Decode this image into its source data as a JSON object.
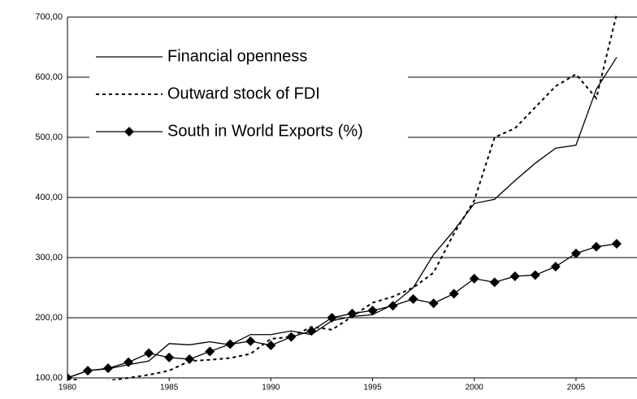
{
  "chart_data": {
    "type": "line",
    "x": [
      1980,
      1981,
      1982,
      1983,
      1984,
      1985,
      1986,
      1987,
      1988,
      1989,
      1990,
      1991,
      1992,
      1993,
      1994,
      1995,
      1996,
      1997,
      1998,
      1999,
      2000,
      2001,
      2002,
      2003,
      2004,
      2005,
      2006,
      2007
    ],
    "series": [
      {
        "name": "Financial openness",
        "color": "#000000",
        "linestyle": "solid",
        "marker": "none",
        "values": [
          100,
          112,
          115,
          122,
          128,
          157,
          155,
          160,
          155,
          172,
          172,
          178,
          172,
          195,
          202,
          205,
          222,
          250,
          305,
          345,
          390,
          397,
          428,
          457,
          482,
          487,
          580,
          633
        ]
      },
      {
        "name": "Outward stock of FDI",
        "color": "#000000",
        "linestyle": "dashed",
        "marker": "none",
        "values": [
          100,
          92,
          95,
          100,
          105,
          112,
          128,
          130,
          133,
          140,
          165,
          168,
          185,
          180,
          202,
          225,
          235,
          250,
          275,
          340,
          395,
          500,
          515,
          550,
          585,
          605,
          565,
          705
        ]
      },
      {
        "name": "South in World Exports (%)",
        "color": "#000000",
        "linestyle": "solid",
        "marker": "diamond",
        "values": [
          100,
          112,
          116,
          126,
          141,
          134,
          131,
          144,
          156,
          161,
          154,
          168,
          178,
          200,
          207,
          212,
          220,
          231,
          224,
          240,
          265,
          259,
          269,
          271,
          285,
          307,
          318,
          323
        ]
      }
    ],
    "xlim": [
      1980,
      2008
    ],
    "xticks": [
      1980,
      1985,
      1990,
      1995,
      2000,
      2005
    ],
    "ylim": [
      100,
      700
    ],
    "yticks": [
      {
        "value": 100,
        "label": "100,00"
      },
      {
        "value": 200,
        "label": "200,00"
      },
      {
        "value": 300,
        "label": "300,00"
      },
      {
        "value": 400,
        "label": "400,00"
      },
      {
        "value": 500,
        "label": "500,00"
      },
      {
        "value": 600,
        "label": "600,00"
      },
      {
        "value": 700,
        "label": "700,00"
      }
    ],
    "grid": true,
    "legend": "upper left"
  }
}
